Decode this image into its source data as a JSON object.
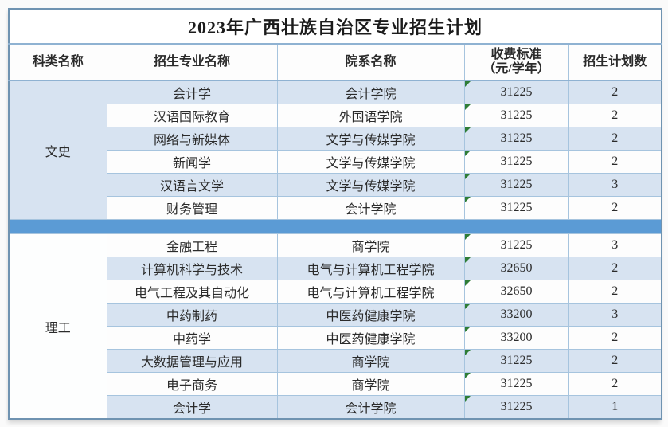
{
  "title": "2023年广西壮族自治区专业招生计划",
  "columns": [
    "科类名称",
    "招生专业名称",
    "院系名称",
    "收费标准\n（元/学年）",
    "招生计划数"
  ],
  "sections": [
    {
      "category": "文史",
      "rows": [
        {
          "major": "会计学",
          "department": "会计学院",
          "fee": "31225",
          "plan": "2"
        },
        {
          "major": "汉语国际教育",
          "department": "外国语学院",
          "fee": "31225",
          "plan": "2"
        },
        {
          "major": "网络与新媒体",
          "department": "文学与传媒学院",
          "fee": "31225",
          "plan": "2"
        },
        {
          "major": "新闻学",
          "department": "文学与传媒学院",
          "fee": "31225",
          "plan": "2"
        },
        {
          "major": "汉语言文学",
          "department": "文学与传媒学院",
          "fee": "31225",
          "plan": "3"
        },
        {
          "major": "财务管理",
          "department": "会计学院",
          "fee": "31225",
          "plan": "2"
        }
      ]
    },
    {
      "category": "理工",
      "rows": [
        {
          "major": "金融工程",
          "department": "商学院",
          "fee": "31225",
          "plan": "3"
        },
        {
          "major": "计算机科学与技术",
          "department": "电气与计算机工程学院",
          "fee": "32650",
          "plan": "2"
        },
        {
          "major": "电气工程及其自动化",
          "department": "电气与计算机工程学院",
          "fee": "32650",
          "plan": "2"
        },
        {
          "major": "中药制药",
          "department": "中医药健康学院",
          "fee": "33200",
          "plan": "3"
        },
        {
          "major": "中药学",
          "department": "中医药健康学院",
          "fee": "33200",
          "plan": "2"
        },
        {
          "major": "大数据管理与应用",
          "department": "商学院",
          "fee": "31225",
          "plan": "2"
        },
        {
          "major": "电子商务",
          "department": "商学院",
          "fee": "31225",
          "plan": "2"
        },
        {
          "major": "会计学",
          "department": "会计学院",
          "fee": "31225",
          "plan": "1"
        }
      ]
    }
  ],
  "icons": {
    "fee_cell_marker": "excel-green-triangle-icon"
  },
  "colors": {
    "band_blue": "#d7e3f1",
    "row_white": "#fdfdfd",
    "separator_blue": "#5b9bd5",
    "border_light": "#a6c4de",
    "border_dark": "#6f93b1",
    "flag_green": "#2f7d36",
    "text_dark": "#2b2b2b"
  }
}
